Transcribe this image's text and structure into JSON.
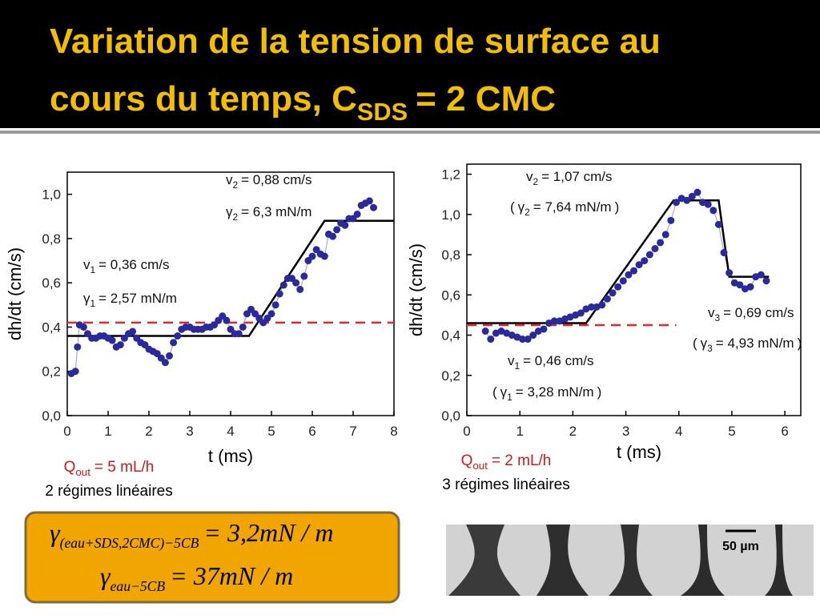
{
  "slide": {
    "title": {
      "line1": "Variation de la tension de surface au",
      "line2": "cours du temps, C",
      "subscript": "SDS",
      "end": "= 2 CMC"
    },
    "formulas": [
      {
        "symbol": "γ",
        "subscript": "(eau+SDS,2CMC)−5CB",
        "text": "= 3,2mN / m"
      },
      {
        "symbol": "γ",
        "subscript": "eau−5CB",
        "text": "= 37mN / m"
      }
    ],
    "scale_bar": "50 µm"
  },
  "chart_data": [
    {
      "type": "scatter",
      "xlabel": "t (ms)",
      "ylabel": "dh/dt (cm/s)",
      "xlim": [
        0,
        8
      ],
      "ylim": [
        0,
        1.1
      ],
      "xticks": [
        0,
        1,
        2,
        3,
        4,
        5,
        6,
        7,
        8
      ],
      "yticks": [
        {
          "value": 0,
          "label": "0,0"
        },
        {
          "value": 0.2,
          "label": "0,2"
        },
        {
          "value": 0.4,
          "label": "0,4"
        },
        {
          "value": 0.6,
          "label": "0,6"
        },
        {
          "value": 0.8,
          "label": "0,8"
        },
        {
          "value": 1.0,
          "label": "1,0"
        }
      ],
      "points": {
        "color": "#2a2a9c",
        "x": [
          0.1,
          0.2,
          0.25,
          0.3,
          0.4,
          0.5,
          0.6,
          0.7,
          0.8,
          0.9,
          1.0,
          1.1,
          1.2,
          1.3,
          1.4,
          1.5,
          1.6,
          1.7,
          1.8,
          1.9,
          2.0,
          2.1,
          2.2,
          2.3,
          2.4,
          2.5,
          2.6,
          2.7,
          2.8,
          2.9,
          3.0,
          3.1,
          3.2,
          3.3,
          3.4,
          3.5,
          3.6,
          3.7,
          3.8,
          3.9,
          4.0,
          4.1,
          4.2,
          4.3,
          4.4,
          4.5,
          4.6,
          4.7,
          4.8,
          4.9,
          5.0,
          5.1,
          5.2,
          5.3,
          5.4,
          5.5,
          5.6,
          5.7,
          5.8,
          5.9,
          6.0,
          6.1,
          6.2,
          6.3,
          6.4,
          6.5,
          6.6,
          6.7,
          6.8,
          6.9,
          7.0,
          7.1,
          7.2,
          7.3,
          7.4,
          7.5
        ],
        "y": [
          0.19,
          0.2,
          0.31,
          0.41,
          0.4,
          0.37,
          0.35,
          0.35,
          0.36,
          0.36,
          0.35,
          0.34,
          0.31,
          0.32,
          0.35,
          0.37,
          0.38,
          0.35,
          0.33,
          0.32,
          0.3,
          0.29,
          0.28,
          0.26,
          0.24,
          0.27,
          0.33,
          0.36,
          0.39,
          0.4,
          0.4,
          0.39,
          0.39,
          0.39,
          0.4,
          0.4,
          0.41,
          0.43,
          0.45,
          0.43,
          0.39,
          0.37,
          0.37,
          0.4,
          0.46,
          0.48,
          0.46,
          0.44,
          0.42,
          0.44,
          0.46,
          0.5,
          0.55,
          0.59,
          0.62,
          0.62,
          0.6,
          0.57,
          0.63,
          0.7,
          0.72,
          0.75,
          0.73,
          0.72,
          0.82,
          0.81,
          0.84,
          0.87,
          0.86,
          0.89,
          0.89,
          0.91,
          0.95,
          0.96,
          0.97,
          0.94
        ]
      },
      "fit": {
        "color": "#000000",
        "x": [
          0,
          4.45,
          6.3,
          8
        ],
        "y": [
          0.36,
          0.36,
          0.88,
          0.88
        ]
      },
      "reference": {
        "color": "#e02828",
        "dashed": true,
        "x": [
          0,
          8
        ],
        "y": [
          0.42,
          0.42
        ]
      },
      "annotations": [
        {
          "symbol": "v",
          "subscript": "2",
          "text": "= 0,88 cm/s"
        },
        {
          "symbol": "γ",
          "subscript": "2",
          "text": "= 6,3 mN/m"
        },
        {
          "symbol": "v",
          "subscript": "1",
          "text": "= 0,36 cm/s"
        },
        {
          "symbol": "γ",
          "subscript": "1",
          "text": "= 2,57 mN/m"
        }
      ],
      "caption": {
        "symbol": "Q",
        "subscript": "out",
        "text": "= 5 mL/h",
        "note": "2 régimes linéaires"
      }
    },
    {
      "type": "scatter",
      "xlabel": "t (ms)",
      "ylabel": "dh/dt (cm/s)",
      "xlim": [
        0,
        6.3
      ],
      "ylim": [
        0,
        1.25
      ],
      "xticks": [
        0,
        1,
        2,
        3,
        4,
        5,
        6
      ],
      "yticks": [
        {
          "value": 0,
          "label": "0,0"
        },
        {
          "value": 0.2,
          "label": "0,2"
        },
        {
          "value": 0.4,
          "label": "0,4"
        },
        {
          "value": 0.6,
          "label": "0,6"
        },
        {
          "value": 0.8,
          "label": "0,8"
        },
        {
          "value": 1.0,
          "label": "1,0"
        },
        {
          "value": 1.2,
          "label": "1,2"
        }
      ],
      "points": {
        "color": "#2a2a9c",
        "x": [
          0.35,
          0.45,
          0.55,
          0.65,
          0.75,
          0.85,
          0.95,
          1.05,
          1.15,
          1.25,
          1.35,
          1.45,
          1.55,
          1.65,
          1.75,
          1.85,
          1.95,
          2.05,
          2.15,
          2.25,
          2.35,
          2.45,
          2.55,
          2.65,
          2.75,
          2.85,
          2.95,
          3.05,
          3.15,
          3.25,
          3.35,
          3.45,
          3.55,
          3.65,
          3.75,
          3.85,
          3.95,
          4.05,
          4.15,
          4.25,
          4.35,
          4.45,
          4.55,
          4.65,
          4.75,
          4.85,
          4.95,
          5.05,
          5.15,
          5.25,
          5.35,
          5.45,
          5.55,
          5.65
        ],
        "y": [
          0.42,
          0.38,
          0.41,
          0.42,
          0.41,
          0.4,
          0.39,
          0.38,
          0.38,
          0.4,
          0.42,
          0.43,
          0.46,
          0.47,
          0.47,
          0.48,
          0.49,
          0.5,
          0.51,
          0.53,
          0.54,
          0.54,
          0.55,
          0.58,
          0.61,
          0.64,
          0.67,
          0.7,
          0.72,
          0.75,
          0.77,
          0.8,
          0.83,
          0.86,
          0.9,
          0.97,
          1.06,
          1.08,
          1.07,
          1.09,
          1.11,
          1.06,
          1.05,
          1.02,
          0.95,
          0.81,
          0.71,
          0.66,
          0.65,
          0.63,
          0.64,
          0.69,
          0.7,
          0.67
        ]
      },
      "fit": {
        "color": "#000000",
        "x": [
          0,
          2.25,
          3.9,
          4.75,
          4.95,
          5.7
        ],
        "y": [
          0.46,
          0.46,
          1.07,
          1.07,
          0.69,
          0.69
        ]
      },
      "reference": {
        "color": "#e02828",
        "dashed": true,
        "x": [
          0,
          3.95
        ],
        "y": [
          0.45,
          0.45
        ]
      },
      "annotations": [
        {
          "symbol": "v",
          "subscript": "2",
          "text": "= 1,07 cm/s"
        },
        {
          "prefix": "(",
          "symbol": "γ",
          "subscript": "2",
          "text": "= 7,64 mN/m",
          "suffix": ")"
        },
        {
          "symbol": "v",
          "subscript": "3",
          "text": "= 0,69 cm/s"
        },
        {
          "prefix": "(",
          "symbol": "γ",
          "subscript": "3",
          "text": "= 4,93 mN/m",
          "suffix": ")"
        },
        {
          "symbol": "v",
          "subscript": "1",
          "text": "= 0,46 cm/s"
        },
        {
          "prefix": "(",
          "symbol": "γ",
          "subscript": "1",
          "text": "= 3,28 mN/m",
          "suffix": ")"
        }
      ],
      "caption": {
        "symbol": "Q",
        "subscript": "out",
        "text": "= 2 mL/h",
        "note": "3 régimes linéaires"
      }
    }
  ]
}
